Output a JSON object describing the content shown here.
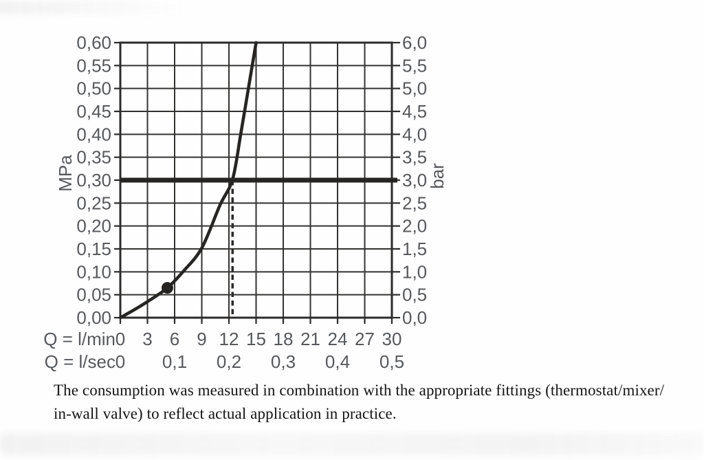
{
  "chart_data": {
    "type": "line",
    "description": "Flow-pressure consumption diagram",
    "grid": true,
    "plot": {
      "x_min_lmin": 0,
      "x_max_lmin": 30,
      "x_grid_step_lmin": 3,
      "y_min_mpa": 0.0,
      "y_max_mpa": 0.6,
      "y_grid_step_mpa": 0.05
    },
    "y_axis_left": {
      "unit": "MPa",
      "tick_labels": [
        "0,60",
        "0,55",
        "0,50",
        "0,45",
        "0,40",
        "0,35",
        "0,30",
        "0,25",
        "0,20",
        "0,15",
        "0,10",
        "0,05",
        "0,00"
      ],
      "tick_values_mpa": [
        0.6,
        0.55,
        0.5,
        0.45,
        0.4,
        0.35,
        0.3,
        0.25,
        0.2,
        0.15,
        0.1,
        0.05,
        0.0
      ]
    },
    "y_axis_right": {
      "unit": "bar",
      "tick_labels": [
        "6,0",
        "5,5",
        "5,0",
        "4,5",
        "4,0",
        "3,5",
        "3,0",
        "2,5",
        "2,0",
        "1,5",
        "1,0",
        "0,5",
        "0,0"
      ],
      "tick_values_bar": [
        6.0,
        5.5,
        5.0,
        4.5,
        4.0,
        3.5,
        3.0,
        2.5,
        2.0,
        1.5,
        1.0,
        0.5,
        0.0
      ]
    },
    "x_axis_lmin": {
      "label": "Q = l/min",
      "tick_labels": [
        "0",
        "3",
        "6",
        "9",
        "12",
        "15",
        "18",
        "21",
        "24",
        "27",
        "30"
      ],
      "tick_values": [
        0,
        3,
        6,
        9,
        12,
        15,
        18,
        21,
        24,
        27,
        30
      ]
    },
    "x_axis_lsec": {
      "label": "Q = l/sec",
      "tick_labels": [
        "0",
        "0,1",
        "0,2",
        "0,3",
        "0,4",
        "0,5"
      ],
      "tick_values_lmin": [
        0,
        6,
        12,
        18,
        24,
        30
      ]
    },
    "series": [
      {
        "name": "flow-characteristic-curve",
        "points_q_lmin_vs_mpa": [
          [
            0,
            0.0
          ],
          [
            1.6,
            0.018
          ],
          [
            3,
            0.035
          ],
          [
            5.2,
            0.065
          ],
          [
            7,
            0.102
          ],
          [
            9,
            0.152
          ],
          [
            11,
            0.245
          ],
          [
            12.4,
            0.302
          ],
          [
            13.3,
            0.4
          ],
          [
            14.15,
            0.5
          ],
          [
            15.0,
            0.6
          ]
        ]
      }
    ],
    "marker_point": {
      "q_lmin": 5.2,
      "mpa": 0.065
    },
    "reference_line_mpa": 0.3,
    "dashed_guide_q_lmin": 12.4,
    "colors": {
      "grid": "#333231",
      "border": "#2c2b2a",
      "curve": "#262524",
      "reference_line": "#262524",
      "dashed_line": "#2c2b2a",
      "marker": "#242322",
      "tick_label": "#56585b",
      "background": "#fefefe"
    }
  },
  "caption": {
    "line1": "The consumption was measured in combination with the appropriate fittings (thermostat/mixer/",
    "line2": "in-wall valve) to reflect actual application in practice."
  }
}
